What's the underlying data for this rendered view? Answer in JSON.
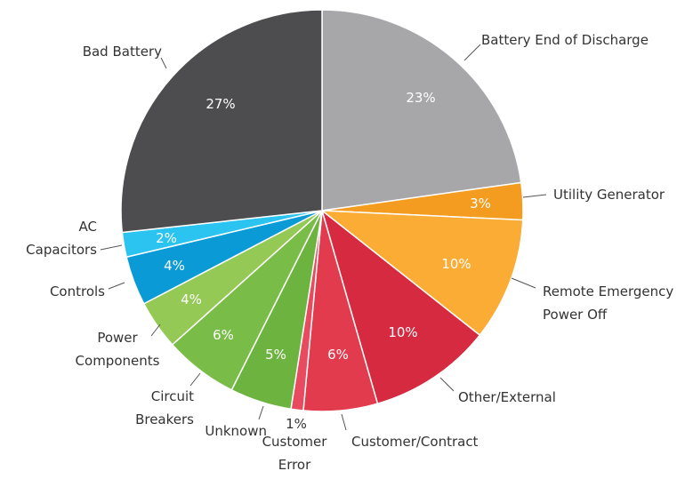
{
  "chart_data": {
    "type": "pie",
    "categories": [
      "Battery End of Discharge",
      "Utility Generator",
      "Remote Emergency Power Off",
      "Other/External",
      "Customer/Contract",
      "Customer Error",
      "Unknown",
      "Circuit Breakers",
      "Power Components",
      "Controls",
      "AC Capacitors",
      "Bad Battery"
    ],
    "values": [
      23,
      3,
      10,
      10,
      6,
      1,
      5,
      6,
      4,
      4,
      2,
      27
    ],
    "value_labels": [
      "23%",
      "3%",
      "10%",
      "10%",
      "6%",
      "1%",
      "5%",
      "6%",
      "4%",
      "4%",
      "2%",
      "27%"
    ],
    "colors": [
      "#a7a7a9",
      "#f39c1f",
      "#fbac35",
      "#d62a40",
      "#e23b4e",
      "#e84a5f",
      "#6cb33f",
      "#79bd48",
      "#93c954",
      "#0a9bd6",
      "#2bc3f0",
      "#4d4d4f"
    ]
  }
}
